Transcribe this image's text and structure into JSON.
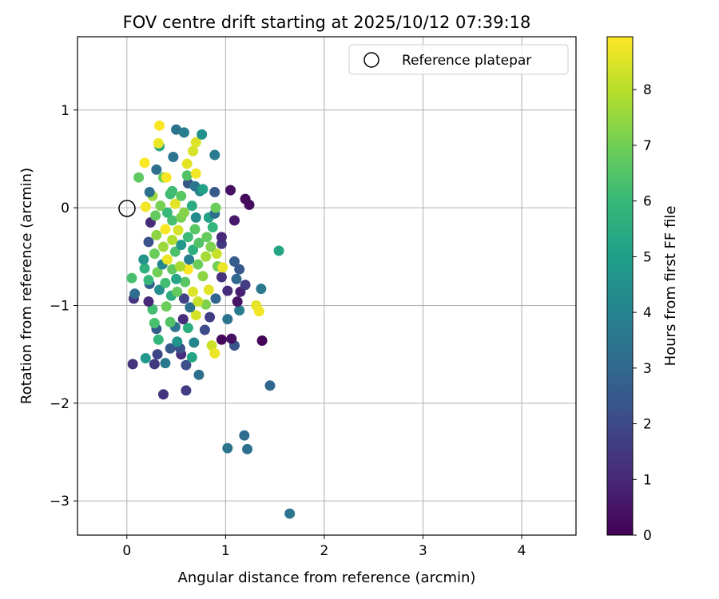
{
  "chart_data": {
    "type": "scatter",
    "title": "FOV centre drift starting at 2025/10/12 07:39:18",
    "xlabel": "Angular distance from reference (arcmin)",
    "ylabel": "Rotation from reference (arcmin)",
    "xlim": [
      -0.5,
      4.55
    ],
    "ylim": [
      -3.35,
      1.75
    ],
    "xticks": [
      0,
      1,
      2,
      3,
      4
    ],
    "xtick_labels": [
      "0",
      "1",
      "2",
      "3",
      "4"
    ],
    "yticks": [
      1,
      0,
      -1,
      -2,
      -3
    ],
    "ytick_labels": [
      "1",
      "0",
      "−1",
      "−2",
      "−3"
    ],
    "grid": true,
    "legend": {
      "position": "top-right",
      "entries": [
        {
          "label": "Reference platepar",
          "marker": "open-circle"
        }
      ]
    },
    "reference_point": {
      "x": 0,
      "y": 0
    },
    "colorbar": {
      "label": "Hours from first FF file",
      "range": [
        0,
        8.95
      ],
      "ticks": [
        0,
        1,
        2,
        3,
        4,
        5,
        6,
        7,
        8
      ],
      "tick_labels": [
        "0",
        "1",
        "2",
        "3",
        "4",
        "5",
        "6",
        "7",
        "8"
      ],
      "colormap": "viridis",
      "stops": [
        "#440154",
        "#482878",
        "#3e4989",
        "#31688e",
        "#26828e",
        "#1f9e89",
        "#35b779",
        "#6ece58",
        "#b5de2b",
        "#fde725"
      ]
    },
    "points": [
      {
        "x": 1.65,
        "y": -3.13,
        "h": 3.5
      },
      {
        "x": 1.02,
        "y": -2.46,
        "h": 3.4
      },
      {
        "x": 1.22,
        "y": -2.47,
        "h": 3.3
      },
      {
        "x": 1.19,
        "y": -2.33,
        "h": 3.2
      },
      {
        "x": 1.45,
        "y": -1.82,
        "h": 3.0
      },
      {
        "x": 0.37,
        "y": -1.91,
        "h": 1.3
      },
      {
        "x": 0.6,
        "y": -1.87,
        "h": 1.6
      },
      {
        "x": 0.73,
        "y": -1.71,
        "h": 3.3
      },
      {
        "x": 0.06,
        "y": -1.6,
        "h": 1.4
      },
      {
        "x": 0.28,
        "y": -1.6,
        "h": 1.5
      },
      {
        "x": 0.39,
        "y": -1.59,
        "h": 3.6
      },
      {
        "x": 0.6,
        "y": -1.61,
        "h": 2.2
      },
      {
        "x": 0.19,
        "y": -1.54,
        "h": 4.8
      },
      {
        "x": 0.31,
        "y": -1.5,
        "h": 1.9
      },
      {
        "x": 0.55,
        "y": -1.5,
        "h": 1.2
      },
      {
        "x": 0.66,
        "y": -1.53,
        "h": 5.2
      },
      {
        "x": 0.44,
        "y": -1.44,
        "h": 2.5
      },
      {
        "x": 0.54,
        "y": -1.44,
        "h": 2.3
      },
      {
        "x": 0.68,
        "y": -1.38,
        "h": 4.1
      },
      {
        "x": 0.86,
        "y": -1.41,
        "h": 8.3
      },
      {
        "x": 0.89,
        "y": -1.49,
        "h": 8.7
      },
      {
        "x": 1.09,
        "y": -1.41,
        "h": 2.4
      },
      {
        "x": 0.96,
        "y": -1.35,
        "h": 0.2
      },
      {
        "x": 1.06,
        "y": -1.34,
        "h": 0.4
      },
      {
        "x": 1.37,
        "y": -1.36,
        "h": 0.1
      },
      {
        "x": 0.32,
        "y": -1.35,
        "h": 5.9
      },
      {
        "x": 0.51,
        "y": -1.37,
        "h": 4.6
      },
      {
        "x": 0.3,
        "y": -1.24,
        "h": 2.6
      },
      {
        "x": 0.49,
        "y": -1.22,
        "h": 3.4
      },
      {
        "x": 0.62,
        "y": -1.23,
        "h": 5.6
      },
      {
        "x": 0.79,
        "y": -1.25,
        "h": 2.1
      },
      {
        "x": 0.28,
        "y": -1.18,
        "h": 6.3
      },
      {
        "x": 0.44,
        "y": -1.17,
        "h": 6.5
      },
      {
        "x": 0.57,
        "y": -1.14,
        "h": 1.1
      },
      {
        "x": 0.7,
        "y": -1.1,
        "h": 8.4
      },
      {
        "x": 0.84,
        "y": -1.12,
        "h": 1.7
      },
      {
        "x": 1.02,
        "y": -1.14,
        "h": 3.4
      },
      {
        "x": 1.31,
        "y": -1.0,
        "h": 8.6
      },
      {
        "x": 1.34,
        "y": -1.06,
        "h": 8.8
      },
      {
        "x": 1.14,
        "y": -1.05,
        "h": 3.7
      },
      {
        "x": 0.26,
        "y": -1.04,
        "h": 6.2
      },
      {
        "x": 0.4,
        "y": -1.01,
        "h": 6.9
      },
      {
        "x": 0.64,
        "y": -1.02,
        "h": 3.3
      },
      {
        "x": 0.8,
        "y": -0.99,
        "h": 7.2
      },
      {
        "x": 1.12,
        "y": -0.96,
        "h": 0.5
      },
      {
        "x": 0.07,
        "y": -0.93,
        "h": 1.4
      },
      {
        "x": 0.22,
        "y": -0.96,
        "h": 1.0
      },
      {
        "x": 0.45,
        "y": -0.9,
        "h": 5.6
      },
      {
        "x": 0.58,
        "y": -0.93,
        "h": 1.8
      },
      {
        "x": 0.72,
        "y": -0.96,
        "h": 8.2
      },
      {
        "x": 0.9,
        "y": -0.93,
        "h": 2.9
      },
      {
        "x": 0.08,
        "y": -0.88,
        "h": 3.2
      },
      {
        "x": 0.33,
        "y": -0.84,
        "h": 4.4
      },
      {
        "x": 0.51,
        "y": -0.86,
        "h": 6.8
      },
      {
        "x": 0.67,
        "y": -0.86,
        "h": 8.5
      },
      {
        "x": 1.02,
        "y": -0.85,
        "h": 1.1
      },
      {
        "x": 1.15,
        "y": -0.86,
        "h": 0.8
      },
      {
        "x": 1.36,
        "y": -0.83,
        "h": 3.6
      },
      {
        "x": 0.23,
        "y": -0.78,
        "h": 2.7
      },
      {
        "x": 0.39,
        "y": -0.77,
        "h": 6.2
      },
      {
        "x": 0.59,
        "y": -0.76,
        "h": 6.6
      },
      {
        "x": 0.83,
        "y": -0.84,
        "h": 8.6
      },
      {
        "x": 1.2,
        "y": -0.79,
        "h": 1.6
      },
      {
        "x": 0.05,
        "y": -0.72,
        "h": 6.3
      },
      {
        "x": 0.22,
        "y": -0.74,
        "h": 6.0
      },
      {
        "x": 0.5,
        "y": -0.73,
        "h": 5.3
      },
      {
        "x": 0.77,
        "y": -0.7,
        "h": 7.4
      },
      {
        "x": 0.96,
        "y": -0.71,
        "h": 1.3
      },
      {
        "x": 1.11,
        "y": -0.73,
        "h": 3.0
      },
      {
        "x": 0.31,
        "y": -0.66,
        "h": 7.0
      },
      {
        "x": 0.46,
        "y": -0.63,
        "h": 6.7
      },
      {
        "x": 0.62,
        "y": -0.63,
        "h": 8.9
      },
      {
        "x": 0.92,
        "y": -0.6,
        "h": 7.0
      },
      {
        "x": 0.97,
        "y": -0.61,
        "h": 8.7
      },
      {
        "x": 1.14,
        "y": -0.63,
        "h": 2.5
      },
      {
        "x": 0.18,
        "y": -0.62,
        "h": 5.7
      },
      {
        "x": 0.36,
        "y": -0.58,
        "h": 4.1
      },
      {
        "x": 0.54,
        "y": -0.6,
        "h": 7.8
      },
      {
        "x": 0.72,
        "y": -0.58,
        "h": 6.9
      },
      {
        "x": 1.09,
        "y": -0.55,
        "h": 2.6
      },
      {
        "x": 0.17,
        "y": -0.53,
        "h": 4.6
      },
      {
        "x": 0.41,
        "y": -0.53,
        "h": 8.7
      },
      {
        "x": 0.63,
        "y": -0.53,
        "h": 3.8
      },
      {
        "x": 0.8,
        "y": -0.5,
        "h": 7.7
      },
      {
        "x": 0.91,
        "y": -0.47,
        "h": 8.2
      },
      {
        "x": 1.54,
        "y": -0.44,
        "h": 5.2
      },
      {
        "x": 0.28,
        "y": -0.47,
        "h": 6.9
      },
      {
        "x": 0.49,
        "y": -0.45,
        "h": 6.4
      },
      {
        "x": 0.67,
        "y": -0.43,
        "h": 5.6
      },
      {
        "x": 0.85,
        "y": -0.4,
        "h": 7.2
      },
      {
        "x": 0.37,
        "y": -0.4,
        "h": 7.6
      },
      {
        "x": 0.55,
        "y": -0.38,
        "h": 4.7
      },
      {
        "x": 0.73,
        "y": -0.36,
        "h": 6.5
      },
      {
        "x": 0.96,
        "y": -0.37,
        "h": 1.5
      },
      {
        "x": 0.22,
        "y": -0.35,
        "h": 2.3
      },
      {
        "x": 0.46,
        "y": -0.33,
        "h": 7.9
      },
      {
        "x": 0.62,
        "y": -0.3,
        "h": 6.1
      },
      {
        "x": 0.81,
        "y": -0.3,
        "h": 6.8
      },
      {
        "x": 0.96,
        "y": -0.3,
        "h": 1.0
      },
      {
        "x": 0.3,
        "y": -0.28,
        "h": 7.4
      },
      {
        "x": 0.39,
        "y": -0.22,
        "h": 8.9
      },
      {
        "x": 0.52,
        "y": -0.23,
        "h": 8.4
      },
      {
        "x": 0.69,
        "y": -0.22,
        "h": 6.6
      },
      {
        "x": 0.87,
        "y": -0.2,
        "h": 5.9
      },
      {
        "x": 0.24,
        "y": -0.15,
        "h": 1.1
      },
      {
        "x": 0.46,
        "y": -0.13,
        "h": 6.3
      },
      {
        "x": 0.55,
        "y": -0.1,
        "h": 7.1
      },
      {
        "x": 0.7,
        "y": -0.1,
        "h": 4.3
      },
      {
        "x": 0.83,
        "y": -0.1,
        "h": 5.1
      },
      {
        "x": 1.09,
        "y": -0.13,
        "h": 0.6
      },
      {
        "x": 0.29,
        "y": -0.08,
        "h": 6.8
      },
      {
        "x": 0.41,
        "y": -0.05,
        "h": 6.0
      },
      {
        "x": 0.58,
        "y": -0.05,
        "h": 7.3
      },
      {
        "x": 0.89,
        "y": -0.06,
        "h": 3.2
      },
      {
        "x": 0.19,
        "y": 0.01,
        "h": 8.8
      },
      {
        "x": 0.34,
        "y": 0.02,
        "h": 7.1
      },
      {
        "x": 0.49,
        "y": 0.04,
        "h": 8.6
      },
      {
        "x": 0.66,
        "y": 0.02,
        "h": 5.5
      },
      {
        "x": 0.9,
        "y": 0.0,
        "h": 6.9
      },
      {
        "x": 1.24,
        "y": 0.03,
        "h": 0.3
      },
      {
        "x": 0.26,
        "y": 0.12,
        "h": 7.6
      },
      {
        "x": 0.44,
        "y": 0.14,
        "h": 6.1
      },
      {
        "x": 0.55,
        "y": 0.12,
        "h": 6.6
      },
      {
        "x": 0.74,
        "y": 0.17,
        "h": 4.2
      },
      {
        "x": 0.89,
        "y": 0.16,
        "h": 2.5
      },
      {
        "x": 1.2,
        "y": 0.09,
        "h": 0.2
      },
      {
        "x": 0.23,
        "y": 0.16,
        "h": 3.3
      },
      {
        "x": 0.46,
        "y": 0.17,
        "h": 6.2
      },
      {
        "x": 0.62,
        "y": 0.25,
        "h": 2.4
      },
      {
        "x": 0.69,
        "y": 0.22,
        "h": 3.5
      },
      {
        "x": 0.77,
        "y": 0.19,
        "h": 5.1
      },
      {
        "x": 1.05,
        "y": 0.18,
        "h": 0.4
      },
      {
        "x": 0.12,
        "y": 0.31,
        "h": 6.7
      },
      {
        "x": 0.37,
        "y": 0.31,
        "h": 6.9
      },
      {
        "x": 0.4,
        "y": 0.31,
        "h": 8.9
      },
      {
        "x": 0.61,
        "y": 0.33,
        "h": 6.5
      },
      {
        "x": 0.7,
        "y": 0.35,
        "h": 8.8
      },
      {
        "x": 0.3,
        "y": 0.39,
        "h": 3.2
      },
      {
        "x": 0.18,
        "y": 0.46,
        "h": 8.9
      },
      {
        "x": 0.61,
        "y": 0.45,
        "h": 8.6
      },
      {
        "x": 0.47,
        "y": 0.52,
        "h": 3.5
      },
      {
        "x": 0.89,
        "y": 0.54,
        "h": 3.7
      },
      {
        "x": 0.33,
        "y": 0.63,
        "h": 5.3
      },
      {
        "x": 0.67,
        "y": 0.58,
        "h": 8.4
      },
      {
        "x": 0.32,
        "y": 0.66,
        "h": 8.7
      },
      {
        "x": 0.7,
        "y": 0.67,
        "h": 8.5
      },
      {
        "x": 0.5,
        "y": 0.8,
        "h": 3.4
      },
      {
        "x": 0.58,
        "y": 0.77,
        "h": 3.8
      },
      {
        "x": 0.76,
        "y": 0.75,
        "h": 4.5
      },
      {
        "x": 0.33,
        "y": 0.84,
        "h": 8.9
      }
    ]
  }
}
